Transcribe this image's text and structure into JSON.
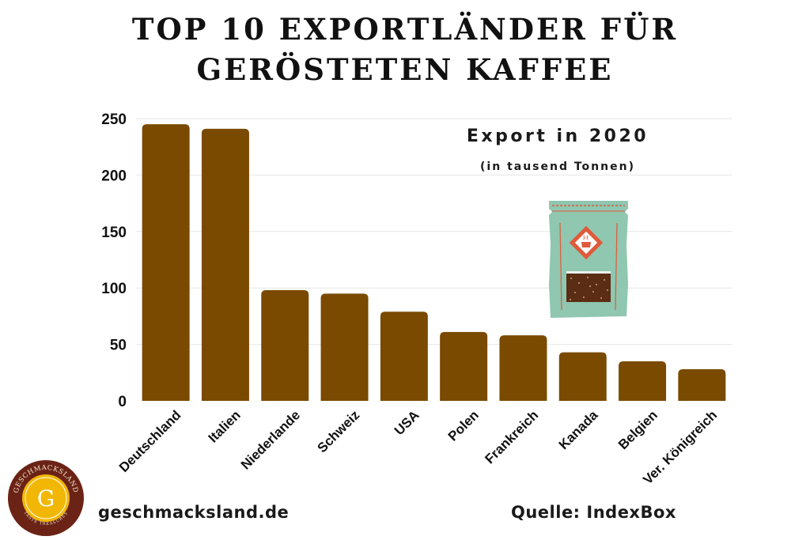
{
  "title": {
    "line1": "TOP 10 EXPORTLÄNDER FÜR",
    "line2": "GERÖSTETEN KAFFEE"
  },
  "annotation": {
    "main": "Export in 2020",
    "sub": "(in tausend Tonnen)"
  },
  "footer": {
    "website": "geschmacksland.de",
    "source": "Quelle: IndexBox"
  },
  "logo": {
    "brand": "GESCHMACKSLAND",
    "letter": "G",
    "slogan": "TASTE TREASURES"
  },
  "illustration": {
    "icon": "coffee-bag-icon"
  },
  "colors": {
    "bar": "#7a4a01",
    "grid": "#e6e6e6",
    "text": "#1a1a1a",
    "logo_ring": "#6b2316",
    "logo_gold": "#f2b705",
    "bag": "#8fc7b0",
    "bag_accent": "#e05a3b"
  },
  "chart_data": {
    "type": "bar",
    "categories": [
      "Deutschland",
      "Italien",
      "Niederlande",
      "Schweiz",
      "USA",
      "Polen",
      "Frankreich",
      "Kanada",
      "Belgien",
      "Ver. Königreich"
    ],
    "values": [
      245,
      241,
      98,
      95,
      79,
      61,
      58,
      43,
      35,
      28
    ],
    "ylim": [
      0,
      250
    ],
    "yticks": [
      0,
      50,
      100,
      150,
      200,
      250
    ],
    "grid": true,
    "legend": "none"
  }
}
